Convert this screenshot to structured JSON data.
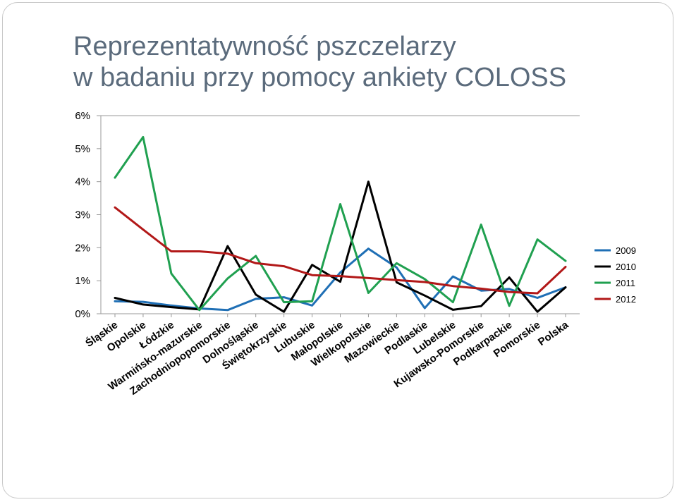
{
  "title": {
    "line1": "Reprezentatywność pszczelarzy",
    "line2": "w badaniu przy pomocy ankiety COLOSS"
  },
  "chart_data": {
    "type": "line",
    "title": "Reprezentatywność pszczelarzy w badaniu przy pomocy ankiety COLOSS",
    "xlabel": "",
    "ylabel": "",
    "ylim": [
      0,
      6
    ],
    "y_ticks": [
      "0%",
      "1%",
      "2%",
      "3%",
      "4%",
      "5%",
      "6%"
    ],
    "y_unit": "%",
    "grid": "horizontal top line only",
    "legend_position": "right",
    "categories": [
      "Śląskie",
      "Opolskie",
      "Łódzkie",
      "Warmińsko-mazurskie",
      "Zachodniopopomorskie",
      "Dolnośląskie",
      "Świętokrzyskie",
      "Lubuskie",
      "Małopolskie",
      "Wielkopolskie",
      "Mazowieckie",
      "Podlaskie",
      "Lubelskie",
      "Kujawsko-Pomorskie",
      "Podkarpackie",
      "Pomorskie",
      "Polska"
    ],
    "series": [
      {
        "name": "2009",
        "color": "#1f6fb5",
        "values": [
          0.38,
          0.36,
          0.25,
          0.16,
          0.11,
          0.45,
          0.5,
          0.25,
          1.25,
          1.97,
          1.4,
          0.17,
          1.13,
          0.7,
          0.75,
          0.48,
          0.8
        ]
      },
      {
        "name": "2010",
        "color": "#000000",
        "values": [
          0.48,
          0.28,
          0.2,
          0.13,
          2.05,
          0.58,
          0.06,
          1.48,
          0.97,
          4.0,
          0.95,
          0.55,
          0.12,
          0.23,
          1.1,
          0.06,
          0.8
        ]
      },
      {
        "name": "2011",
        "color": "#20a050",
        "values": [
          4.12,
          5.35,
          1.22,
          0.11,
          1.07,
          1.75,
          0.35,
          0.38,
          3.32,
          0.63,
          1.53,
          1.05,
          0.35,
          2.7,
          0.24,
          2.25,
          1.6
        ]
      },
      {
        "name": "2012",
        "color": "#b21818",
        "values": [
          3.22,
          2.55,
          1.89,
          1.89,
          1.82,
          1.53,
          1.44,
          1.17,
          1.14,
          1.08,
          1.02,
          0.96,
          0.84,
          0.76,
          0.66,
          0.62,
          1.42
        ]
      }
    ]
  }
}
